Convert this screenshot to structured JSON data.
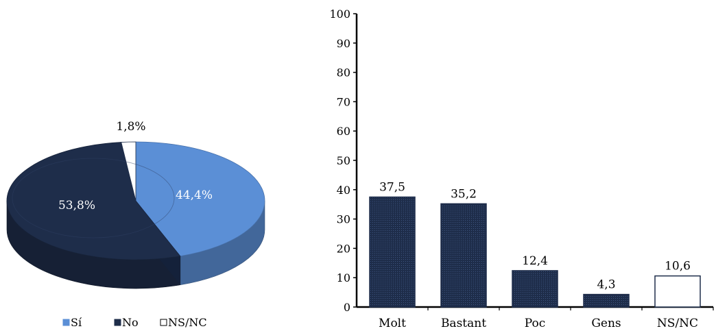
{
  "chart_data": [
    {
      "type": "pie",
      "slices": [
        {
          "label": "Sí",
          "value": 44.4,
          "value_label": "44,4%",
          "color": "#5B8FD6"
        },
        {
          "label": "No",
          "value": 53.8,
          "value_label": "53,8%",
          "color": "#1E2D4A"
        },
        {
          "label": "NS/NC",
          "value": 1.8,
          "value_label": "1,8%",
          "color": "#FFFFFF"
        }
      ],
      "legend": [
        "Sí",
        "No",
        "NS/NC"
      ],
      "legend_position": "bottom"
    },
    {
      "type": "bar",
      "categories": [
        "Molt",
        "Bastant",
        "Poc",
        "Gens",
        "NS/NC"
      ],
      "values": [
        37.5,
        35.2,
        12.4,
        4.3,
        10.6
      ],
      "value_labels": [
        "37,5",
        "35,2",
        "12,4",
        "4,3",
        "10,6"
      ],
      "ylim": [
        0,
        100
      ],
      "yticks": [
        "0",
        "10",
        "20",
        "30",
        "40",
        "50",
        "60",
        "70",
        "80",
        "90",
        "100"
      ],
      "colors": {
        "bar": "#1E2D4A",
        "last_bar": "#FFFFFF"
      },
      "grid": false
    }
  ]
}
